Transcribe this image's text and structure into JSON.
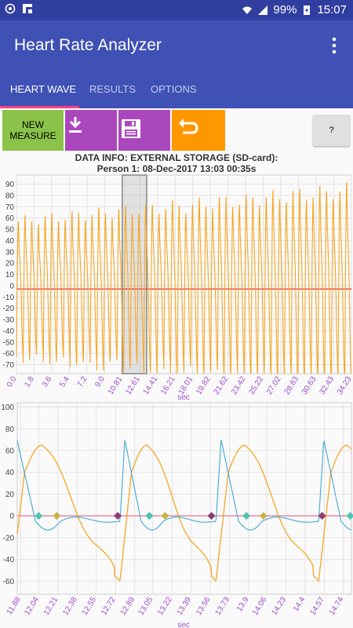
{
  "status_bar": {
    "battery": "99%",
    "time": "15:07"
  },
  "app": {
    "title": "Heart Rate Analyzer"
  },
  "tabs": [
    {
      "label": "HEART WAVE",
      "active": true
    },
    {
      "label": "RESULTS",
      "active": false
    },
    {
      "label": "OPTIONS",
      "active": false
    }
  ],
  "toolbar": {
    "new_measure_line1": "NEW",
    "new_measure_line2": "MEASURE",
    "help_label": "?"
  },
  "info": {
    "line1": "DATA INFO: EXTERNAL STORAGE (SD-card):",
    "line2": "Person 1: 08-Dec-2017 13:03 00:35s"
  },
  "colors": {
    "primary": "#3f51b5",
    "primary_dark": "#303f9f",
    "accent": "#ff4081",
    "wave": "#f5a623",
    "derivative": "#3fa9d6",
    "baseline": "#e53935",
    "tick_label": "#9c4dcc"
  },
  "chart_data": [
    {
      "type": "line",
      "xlabel": "sec",
      "x_ticks": [
        "0.0",
        "1.8",
        "3.6",
        "5.4",
        "7.2",
        "9.0",
        "10.81",
        "12.61",
        "14.41",
        "16.21",
        "18.01",
        "19.82",
        "21.62",
        "23.42",
        "25.22",
        "27.02",
        "28.83",
        "30.63",
        "32.43",
        "34.23"
      ],
      "y_ticks": [
        90,
        80,
        70,
        60,
        50,
        40,
        30,
        20,
        10,
        0,
        -10,
        -20,
        -30,
        -40,
        -50,
        -60,
        -70
      ],
      "xlim": [
        0,
        34.23
      ],
      "ylim": [
        -78,
        98
      ],
      "grid": true,
      "baseline_y": -3,
      "selection_x": [
        10.81,
        13.3
      ],
      "beats": 50,
      "series": [
        {
          "amplitude_start": 60,
          "amplitude_end": 88,
          "offset": -3
        }
      ]
    },
    {
      "type": "line",
      "xlabel": "sec",
      "x_ticks": [
        "11.88",
        "12.04",
        "12.21",
        "12.38",
        "12.55",
        "12.72",
        "12.89",
        "13.05",
        "13.22",
        "13.39",
        "13.56",
        "13.73",
        "13.9",
        "14.06",
        "14.23",
        "14.4",
        "14.57",
        "14.74"
      ],
      "y_ticks": [
        100,
        80,
        60,
        40,
        20,
        0,
        -20,
        -40,
        -60
      ],
      "xlim": [
        11.85,
        14.81
      ],
      "ylim": [
        -72,
        104
      ],
      "grid": true,
      "baseline_y": 0,
      "beat_starts": [
        11.8,
        12.76,
        13.61,
        14.52
      ],
      "markers": [
        {
          "x": 12.04,
          "kind": "derivative-peak"
        },
        {
          "x": 12.2,
          "kind": "wave-peak"
        },
        {
          "x": 12.74,
          "kind": "beat-start"
        },
        {
          "x": 13.02,
          "kind": "derivative-peak"
        },
        {
          "x": 13.16,
          "kind": "wave-peak"
        },
        {
          "x": 13.57,
          "kind": "beat-start"
        },
        {
          "x": 13.88,
          "kind": "derivative-peak"
        },
        {
          "x": 14.03,
          "kind": "wave-peak"
        },
        {
          "x": 14.55,
          "kind": "beat-start"
        },
        {
          "x": 14.8,
          "kind": "derivative-peak"
        }
      ]
    }
  ]
}
